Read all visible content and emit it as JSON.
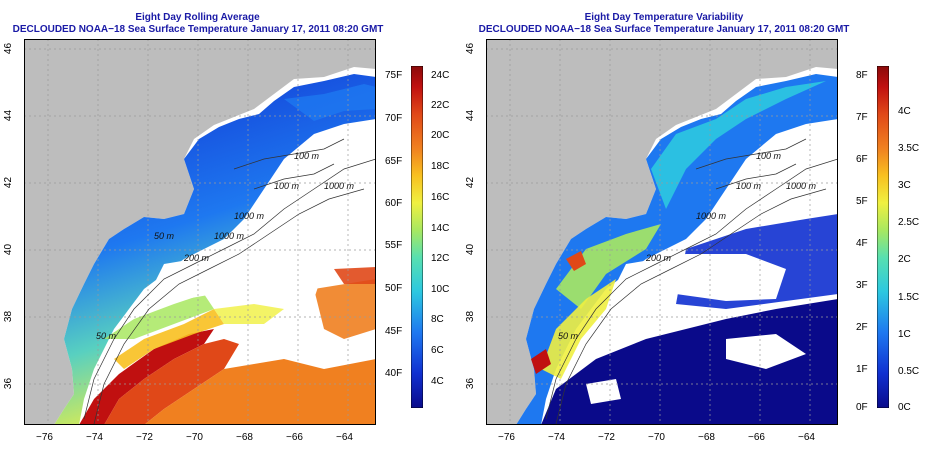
{
  "panels": [
    {
      "title_line1": "Eight Day Rolling Average",
      "title_line2": "DECLOUDED NOAA−18 Sea Surface Temperature January 17, 2011 08:20 GMT",
      "colorbar": {
        "left_labels": [
          "75F",
          "70F",
          "65F",
          "60F",
          "55F",
          "50F",
          "45F",
          "40F"
        ],
        "right_labels": [
          "24C",
          "22C",
          "20C",
          "18C",
          "16C",
          "14C",
          "12C",
          "10C",
          "8C",
          "6C",
          "4C"
        ],
        "colors": [
          "#0a0a8a",
          "#1030d0",
          "#1e78f0",
          "#2cc8e0",
          "#58e0b0",
          "#a8e860",
          "#f0f040",
          "#f8c020",
          "#f08020",
          "#e04818",
          "#c01010",
          "#8a0a0a"
        ]
      },
      "contour_labels": [
        "100 m",
        "1000 m",
        "100 m",
        "1000 m",
        "200 m",
        "50 m",
        "50 m",
        "1000 m"
      ]
    },
    {
      "title_line1": "Eight Day Temperature Variability",
      "title_line2": "DECLOUDED NOAA−18 Sea Surface Temperature January 17, 2011 08:20 GMT",
      "colorbar": {
        "left_labels": [
          "8F",
          "7F",
          "6F",
          "5F",
          "4F",
          "3F",
          "2F",
          "1F",
          "0F"
        ],
        "right_labels": [
          "4C",
          "3.5C",
          "3C",
          "2.5C",
          "2C",
          "1.5C",
          "1C",
          "0.5C",
          "0C"
        ],
        "colors": [
          "#0a0a8a",
          "#1030d0",
          "#1e78f0",
          "#2cc8e0",
          "#58e0b0",
          "#a8e860",
          "#f0f040",
          "#f8c020",
          "#f08020",
          "#e04818",
          "#c01010",
          "#8a0a0a"
        ]
      },
      "contour_labels": [
        "100 m",
        "1000 m",
        "100 m",
        "1000 m",
        "200 m",
        "50 m"
      ]
    }
  ],
  "x_ticks": [
    "−76",
    "−74",
    "−72",
    "−70",
    "−68",
    "−66",
    "−64"
  ],
  "y_ticks": [
    "46",
    "44",
    "42",
    "40",
    "38",
    "36"
  ],
  "colors": {
    "land": "#bdbdbd",
    "title": "#1a1aa6",
    "grid": "#9a9a9a"
  }
}
